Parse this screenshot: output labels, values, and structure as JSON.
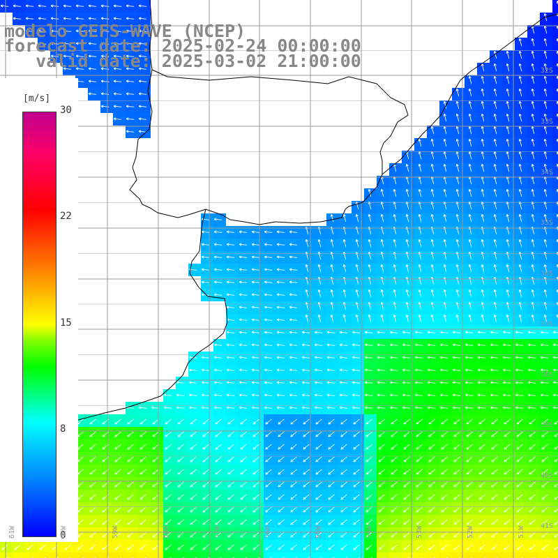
{
  "title": {
    "line1": "modelo GEFS-WAVE (NCEP)",
    "line2": "forecast date: 2025-02-24 00:00:00",
    "line3": "   valid date: 2025-03-02 21:00:00"
  },
  "colorbar": {
    "unit": "[m/s]",
    "ticks": [
      "30",
      "22",
      "15",
      "8",
      "0"
    ],
    "tick_values": [
      30,
      22,
      15,
      8,
      0
    ],
    "range": [
      0,
      30
    ],
    "colors": [
      "#0000ff",
      "#0080ff",
      "#00ffff",
      "#00ff00",
      "#80ff00",
      "#ffff00",
      "#ff8000",
      "#ff0000",
      "#ff0080",
      "#c00080"
    ]
  },
  "lat_labels": [
    "32S",
    "33S",
    "34S",
    "35S",
    "36S",
    "37S",
    "38S",
    "39S",
    "40S",
    "41S"
  ],
  "lon_labels": [
    "61W",
    "60W",
    "59W",
    "58W",
    "57W",
    "56W",
    "55W",
    "54W",
    "53W",
    "52W",
    "51W"
  ],
  "map": {
    "land_color": "#ffffff",
    "grid_color": "#999999",
    "coast_color": "#000000",
    "arrow_color": "#ffffff"
  }
}
